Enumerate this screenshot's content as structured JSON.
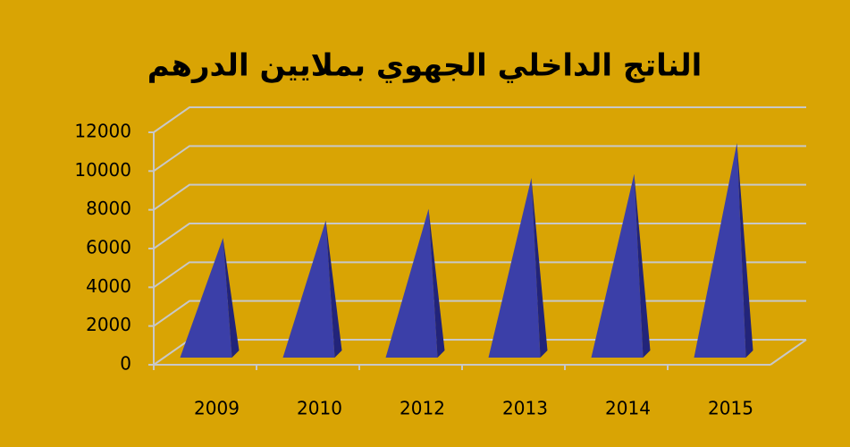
{
  "chart_data": {
    "type": "pyramid",
    "title": "الناتج الداخلي الجهوي بملايين الدرهم",
    "categories": [
      "2009",
      "2010",
      "2012",
      "2013",
      "2014",
      "2015"
    ],
    "values": [
      5900,
      6800,
      7400,
      9000,
      9200,
      10800
    ],
    "color": "#3b3fa8",
    "ylim": [
      0,
      12000
    ],
    "yticks": [
      0,
      2000,
      4000,
      6000,
      8000,
      10000,
      12000
    ],
    "grid": true
  }
}
